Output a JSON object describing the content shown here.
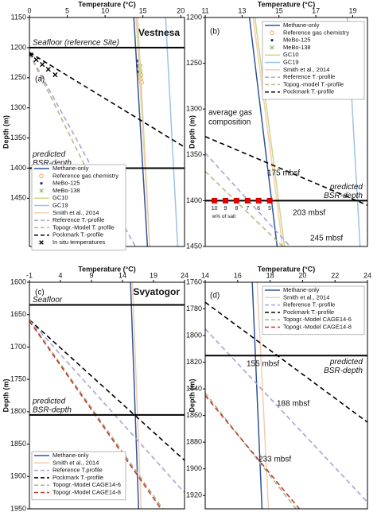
{
  "chart_data": [
    {
      "type": "line",
      "panel": "(a)",
      "title": "Vestnesa",
      "x_label": "Temperature (°C)",
      "y_label": "Depth (m)",
      "xlim": [
        0,
        20.5
      ],
      "xticks": [
        0,
        5,
        10,
        15,
        20
      ],
      "ylim": [
        1150,
        1530
      ],
      "yticks": [
        1150,
        1200,
        1250,
        1300,
        1350,
        1400,
        1450
      ],
      "hlines": [
        {
          "label": [
            "Seafloor (reference Site)"
          ],
          "value": 1200
        },
        {
          "label": [
            "predicted",
            "BSR-depth"
          ],
          "value": 1400
        }
      ],
      "series": [
        {
          "name": "Methane-only",
          "color": "#2f5597",
          "style": "solid",
          "x": [
            13.8,
            15.6
          ],
          "values": [
            1150,
            1530
          ]
        },
        {
          "name": "Reference gas chemistry",
          "color": "#f4a460",
          "style": "circle",
          "x": [
            14.6,
            14.6,
            14.7,
            14.7,
            14.8
          ],
          "values": [
            1230,
            1238,
            1245,
            1252,
            1258
          ]
        },
        {
          "name": "MeBo-125",
          "color": "#1f3864",
          "style": "dot",
          "x": [
            14.3,
            14.3,
            14.4
          ],
          "values": [
            1222,
            1230,
            1240
          ]
        },
        {
          "name": "MeBo-138",
          "color": "#70ad47",
          "style": "x",
          "x": [
            14.5,
            14.6
          ],
          "values": [
            1232,
            1245
          ]
        },
        {
          "name": "GC10",
          "color": "#c9d98a",
          "style": "solid",
          "x": [
            14.3,
            15.9
          ],
          "values": [
            1150,
            1530
          ]
        },
        {
          "name": "GC19",
          "color": "#9dc3e6",
          "style": "solid",
          "x": [
            18,
            19.6
          ],
          "values": [
            1150,
            1530
          ]
        },
        {
          "name": "Smith et al., 2014",
          "color": "#f8cbad",
          "style": "solid",
          "x": [
            14.1,
            15.9
          ],
          "values": [
            1150,
            1530
          ]
        },
        {
          "name": "Reference T.-profile",
          "color": "#a9a3d6",
          "style": "dash",
          "x": [
            0,
            14
          ],
          "values": [
            1210,
            1530
          ]
        },
        {
          "name": "Topogr.-Model T. profile",
          "color": "#bcb48a",
          "style": "dash",
          "x": [
            0,
            12.6
          ],
          "values": [
            1210,
            1530
          ]
        },
        {
          "name": "Pockmark T.-profile",
          "color": "#000000",
          "style": "dash",
          "x": [
            0,
            20.5
          ],
          "values": [
            1208,
            1365
          ]
        },
        {
          "name": "In situ temperatures",
          "color": "#000000",
          "style": "cross",
          "x": [
            0.2,
            0.9,
            1.7,
            2.5,
            3.4
          ],
          "values": [
            1212,
            1220,
            1228,
            1236,
            1245
          ]
        }
      ],
      "annotations": []
    },
    {
      "type": "line",
      "panel": "(b)",
      "title": "",
      "x_label": "Temperature (°C)",
      "y_label": "Depth (m)",
      "xlim": [
        11,
        19.8
      ],
      "xticks": [
        11,
        13,
        15,
        17,
        19
      ],
      "ylim": [
        1200,
        1450
      ],
      "yticks": [
        1200,
        1250,
        1300,
        1350,
        1400,
        1450
      ],
      "hlines": [
        {
          "label": [
            "predicted",
            "BSR-depth"
          ],
          "value": 1400
        }
      ],
      "series": [
        {
          "name": "Methane-only",
          "color": "#2f5597",
          "style": "solid",
          "x": [
            13.4,
            14.9
          ],
          "values": [
            1200,
            1450
          ]
        },
        {
          "name": "Reference gas chemistry",
          "color": "#f4a460",
          "style": "circle",
          "x": [
            14.6,
            14.7,
            14.8,
            14.8,
            14.9,
            15.0
          ],
          "values": [
            1245,
            1252,
            1258,
            1265,
            1270,
            1278
          ]
        },
        {
          "name": "MeBo-125",
          "color": "#1f3864",
          "style": "dot",
          "x": [
            14.2,
            14.3,
            14.3
          ],
          "values": [
            1222,
            1230,
            1238
          ]
        },
        {
          "name": "MeBo-138",
          "color": "#70ad47",
          "style": "x",
          "x": [
            14.4,
            14.5
          ],
          "values": [
            1232,
            1240
          ]
        },
        {
          "name": "GC10",
          "color": "#c9d98a",
          "style": "solid",
          "x": [
            13.7,
            15.3
          ],
          "values": [
            1200,
            1450
          ]
        },
        {
          "name": "GC19",
          "color": "#9dc3e6",
          "style": "solid",
          "x": [
            18.7,
            19.4
          ],
          "values": [
            1200,
            1450
          ]
        },
        {
          "name": "Smith et al., 2014",
          "color": "#f8cbad",
          "style": "solid",
          "x": [
            13.6,
            15.2
          ],
          "values": [
            1200,
            1450
          ]
        },
        {
          "name": "Reference T.-profile",
          "color": "#a9a3d6",
          "style": "dash",
          "x": [
            11,
            15.6
          ],
          "values": [
            1348,
            1450
          ]
        },
        {
          "name": "Topog.-model T.-profile",
          "color": "#bcb48a",
          "style": "dash",
          "x": [
            11,
            15.2
          ],
          "values": [
            1368,
            1450
          ]
        },
        {
          "name": "Pockmark T.-profile",
          "color": "#000000",
          "style": "dash",
          "x": [
            11,
            19.8
          ],
          "values": [
            1330,
            1405
          ]
        }
      ],
      "salt": {
        "label": "w% of salt",
        "color": "#e00000",
        "wt": [
          10,
          9,
          8,
          7,
          6,
          5
        ],
        "x": [
          11.5,
          12.1,
          12.7,
          13.3,
          13.9,
          14.5
        ],
        "values": [
          1400,
          1400,
          1400,
          1400,
          1400,
          1400
        ]
      },
      "annotations": [
        "average gas",
        "composition",
        "175 mbsf",
        "203 mbsf",
        "245 mbsf"
      ]
    },
    {
      "type": "line",
      "panel": "(c)",
      "title": "Svyatogor",
      "x_label": "Temperature (°C)",
      "y_label": "Depth (m)",
      "xlim": [
        -1,
        24
      ],
      "xticks": [
        -1,
        4,
        9,
        14,
        19,
        24
      ],
      "ylim": [
        1600,
        1950
      ],
      "yticks": [
        1600,
        1650,
        1700,
        1750,
        1800,
        1850,
        1900,
        1950
      ],
      "hlines": [
        {
          "label": [
            "Seafloor"
          ],
          "value": 1635
        },
        {
          "label": [
            "predicted",
            "BSR-depth"
          ],
          "value": 1805
        }
      ],
      "series": [
        {
          "name": "Methane-only",
          "color": "#2f5597",
          "style": "solid",
          "x": [
            15.3,
            16.6
          ],
          "values": [
            1600,
            1950
          ]
        },
        {
          "name": "Smith et al., 2014",
          "color": "#f8cbad",
          "style": "solid",
          "x": [
            15.6,
            17
          ],
          "values": [
            1600,
            1950
          ]
        },
        {
          "name": "Reference T.profile",
          "color": "#a9a3d6",
          "style": "dash",
          "x": [
            -1,
            24
          ],
          "values": [
            1658,
            1925
          ]
        },
        {
          "name": "Pockmark T.-profile",
          "color": "#000000",
          "style": "dash",
          "x": [
            -1,
            24
          ],
          "values": [
            1658,
            1875
          ]
        },
        {
          "name": "Topogr.-Model CAGE14-6",
          "color": "#a9b48a",
          "style": "dash",
          "x": [
            -1,
            20.5
          ],
          "values": [
            1658,
            1950
          ]
        },
        {
          "name": "Topogr.-Model CAGE14-8",
          "color": "#c0392b",
          "style": "dash",
          "x": [
            -1,
            20.2
          ],
          "values": [
            1660,
            1950
          ]
        }
      ],
      "annotations": []
    },
    {
      "type": "line",
      "panel": "(d)",
      "title": "",
      "x_label": "Temperature (°C)",
      "y_label": "Depth (m)",
      "xlim": [
        14,
        24
      ],
      "xticks": [
        14,
        16,
        18,
        20,
        22,
        24
      ],
      "ylim": [
        1760,
        1930
      ],
      "yticks": [
        1760,
        1780,
        1800,
        1820,
        1840,
        1860,
        1880,
        1900,
        1920
      ],
      "hlines": [
        {
          "label": [
            "predicted",
            "BSR-depth"
          ],
          "value": 1815
        }
      ],
      "series": [
        {
          "name": "Methane-only",
          "color": "#2f5597",
          "style": "solid",
          "x": [
            16.9,
            17.5
          ],
          "values": [
            1760,
            1930
          ]
        },
        {
          "name": "Smith et al., 2014",
          "color": "#f8cbad",
          "style": "solid",
          "x": [
            17.2,
            17.9
          ],
          "values": [
            1760,
            1930
          ]
        },
        {
          "name": "Reference T.-profile",
          "color": "#a9a3d6",
          "style": "dash",
          "x": [
            14,
            24
          ],
          "values": [
            1795,
            1925
          ]
        },
        {
          "name": "Pockmark T.-profile",
          "color": "#000000",
          "style": "dash",
          "x": [
            14,
            24
          ],
          "values": [
            1775,
            1865
          ]
        },
        {
          "name": "Topogr.-Model CAGE14-6",
          "color": "#a9b48a",
          "style": "dash",
          "x": [
            14,
            19.6
          ],
          "values": [
            1843,
            1930
          ]
        },
        {
          "name": "Topogr.-Model CAGE14-8",
          "color": "#c0392b",
          "style": "dash",
          "x": [
            14,
            19.8
          ],
          "values": [
            1845,
            1930
          ]
        }
      ],
      "annotations": [
        "155 mbsf",
        "188 mbsf",
        "233 mbsf"
      ]
    }
  ]
}
